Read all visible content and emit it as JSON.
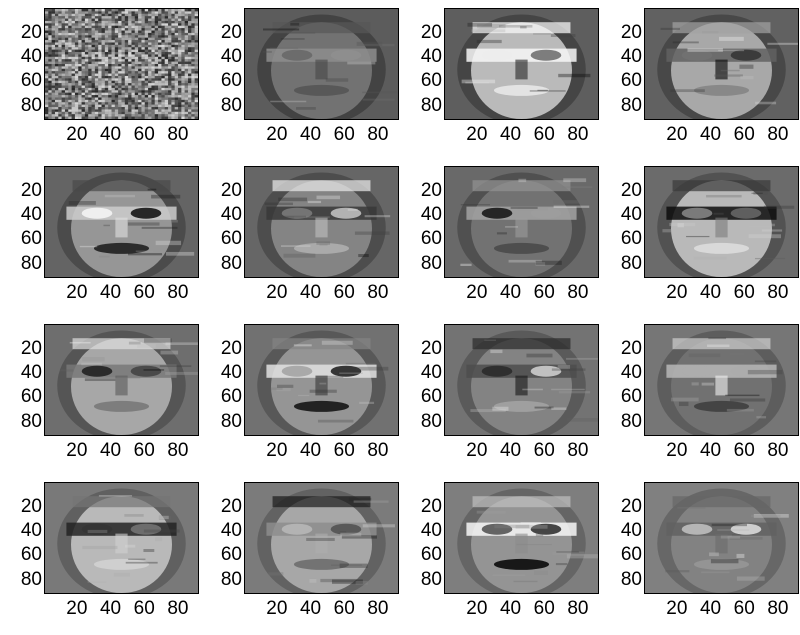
{
  "figure": {
    "rows": 4,
    "cols": 4,
    "panel_titles": []
  },
  "chart_data": {
    "type": "heatmap",
    "description_note": "",
    "subplots": [
      {
        "index": 1,
        "kind": "noise"
      },
      {
        "index": 2,
        "kind": "face"
      },
      {
        "index": 3,
        "kind": "face"
      },
      {
        "index": 4,
        "kind": "face"
      },
      {
        "index": 5,
        "kind": "face"
      },
      {
        "index": 6,
        "kind": "face"
      },
      {
        "index": 7,
        "kind": "face"
      },
      {
        "index": 8,
        "kind": "face"
      },
      {
        "index": 9,
        "kind": "face"
      },
      {
        "index": 10,
        "kind": "face"
      },
      {
        "index": 11,
        "kind": "face"
      },
      {
        "index": 12,
        "kind": "face"
      },
      {
        "index": 13,
        "kind": "face"
      },
      {
        "index": 14,
        "kind": "face"
      },
      {
        "index": 15,
        "kind": "face"
      },
      {
        "index": 16,
        "kind": "face"
      }
    ],
    "x_ticks": [
      "20",
      "40",
      "60",
      "80"
    ],
    "y_ticks": [
      "20",
      "40",
      "60",
      "80"
    ],
    "xlim": [
      0.5,
      92.5
    ],
    "ylim": [
      0.5,
      92.5
    ],
    "colormap": "gray"
  }
}
